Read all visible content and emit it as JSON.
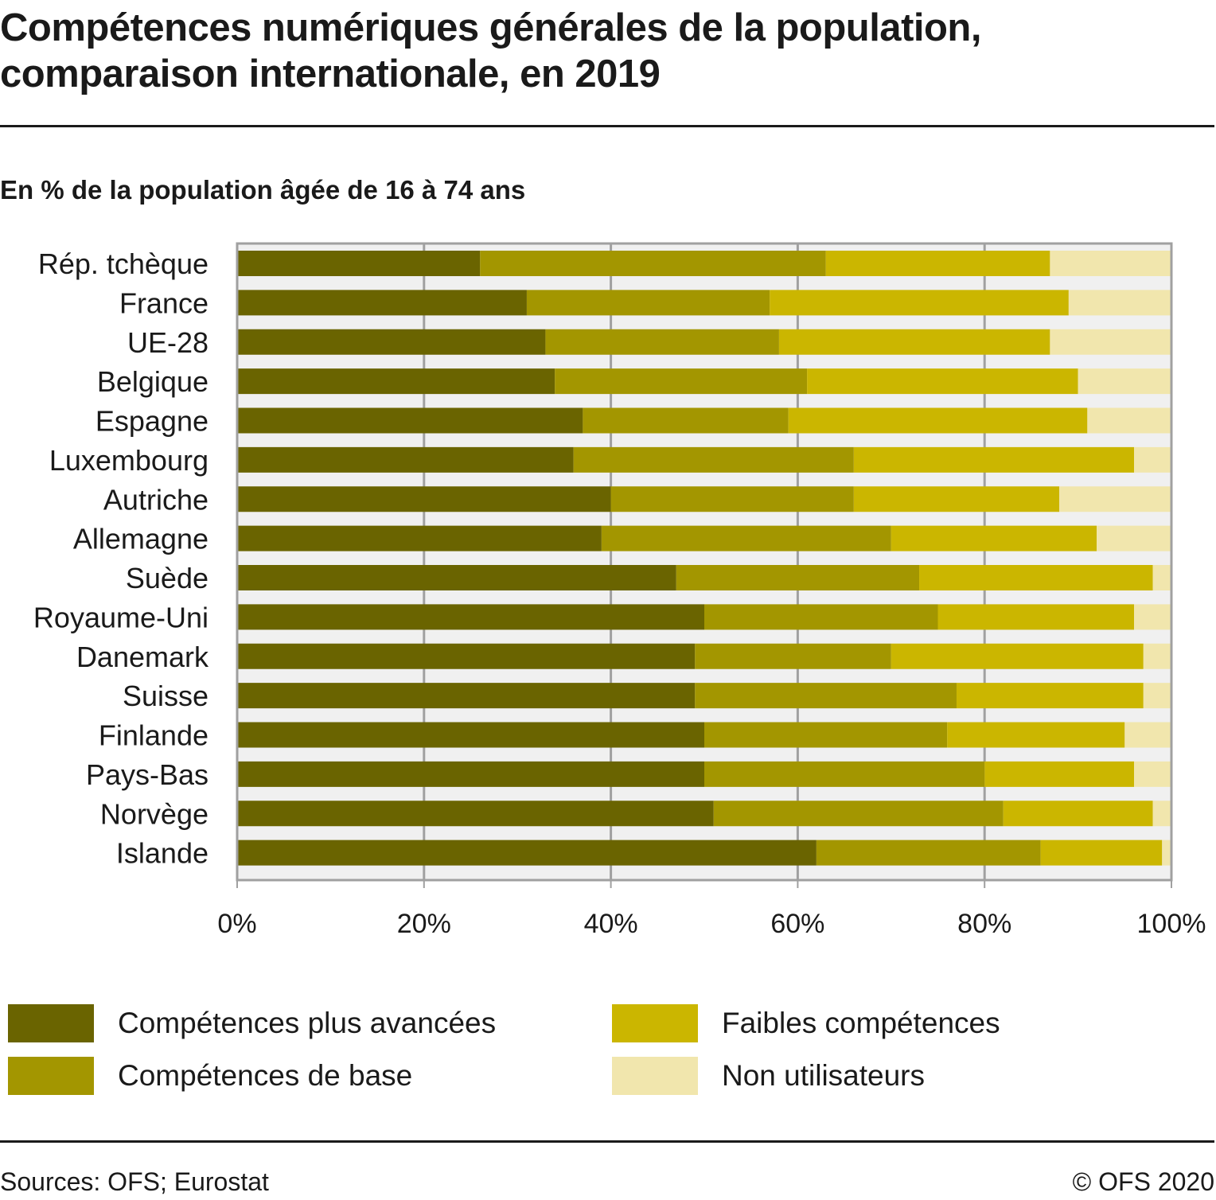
{
  "header": {
    "title_line1": "Compétences numériques générales de la population,",
    "title_line2": "comparaison internationale, en 2019",
    "subtitle": "En % de la population âgée de 16 à 74 ans"
  },
  "footer": {
    "source": "Sources: OFS; Eurostat",
    "copyright": "© OFS 2020"
  },
  "chart_data": {
    "type": "bar",
    "orientation": "horizontal",
    "stacked": true,
    "title": "Compétences numériques générales de la population, comparaison internationale, en 2019",
    "subtitle": "En % de la population âgée de 16 à 74 ans",
    "xlabel": "",
    "ylabel": "",
    "xlim": [
      0,
      100
    ],
    "x_ticks": [
      "0%",
      "20%",
      "40%",
      "60%",
      "80%",
      "100%"
    ],
    "grid": true,
    "legend_position": "bottom",
    "categories": [
      "Rép. tchèque",
      "France",
      "UE-28",
      "Belgique",
      "Espagne",
      "Luxembourg",
      "Autriche",
      "Allemagne",
      "Suède",
      "Royaume-Uni",
      "Danemark",
      "Suisse",
      "Finlande",
      "Pays-Bas",
      "Norvège",
      "Islande"
    ],
    "series": [
      {
        "name": "Compétences plus avancées",
        "color": "#6a6400",
        "values": [
          26,
          31,
          33,
          34,
          37,
          36,
          40,
          39,
          47,
          50,
          49,
          49,
          50,
          50,
          51,
          62
        ]
      },
      {
        "name": "Compétences de base",
        "color": "#a39600",
        "values": [
          37,
          26,
          25,
          27,
          22,
          30,
          26,
          31,
          26,
          25,
          21,
          28,
          26,
          30,
          31,
          24
        ]
      },
      {
        "name": "Faibles compétences",
        "color": "#cbb600",
        "values": [
          24,
          32,
          29,
          29,
          32,
          30,
          22,
          22,
          25,
          21,
          27,
          20,
          19,
          16,
          16,
          13
        ]
      },
      {
        "name": "Non utilisateurs",
        "color": "#f1e6ad",
        "values": [
          13,
          11,
          13,
          10,
          9,
          4,
          12,
          8,
          2,
          4,
          3,
          3,
          5,
          4,
          2,
          1
        ]
      }
    ]
  },
  "legend": [
    {
      "label": "Compétences plus avancées",
      "color": "#6a6400"
    },
    {
      "label": "Faibles compétences",
      "color": "#cbb600"
    },
    {
      "label": "Compétences de base",
      "color": "#a39600"
    },
    {
      "label": "Non utilisateurs",
      "color": "#f1e6ad"
    }
  ]
}
